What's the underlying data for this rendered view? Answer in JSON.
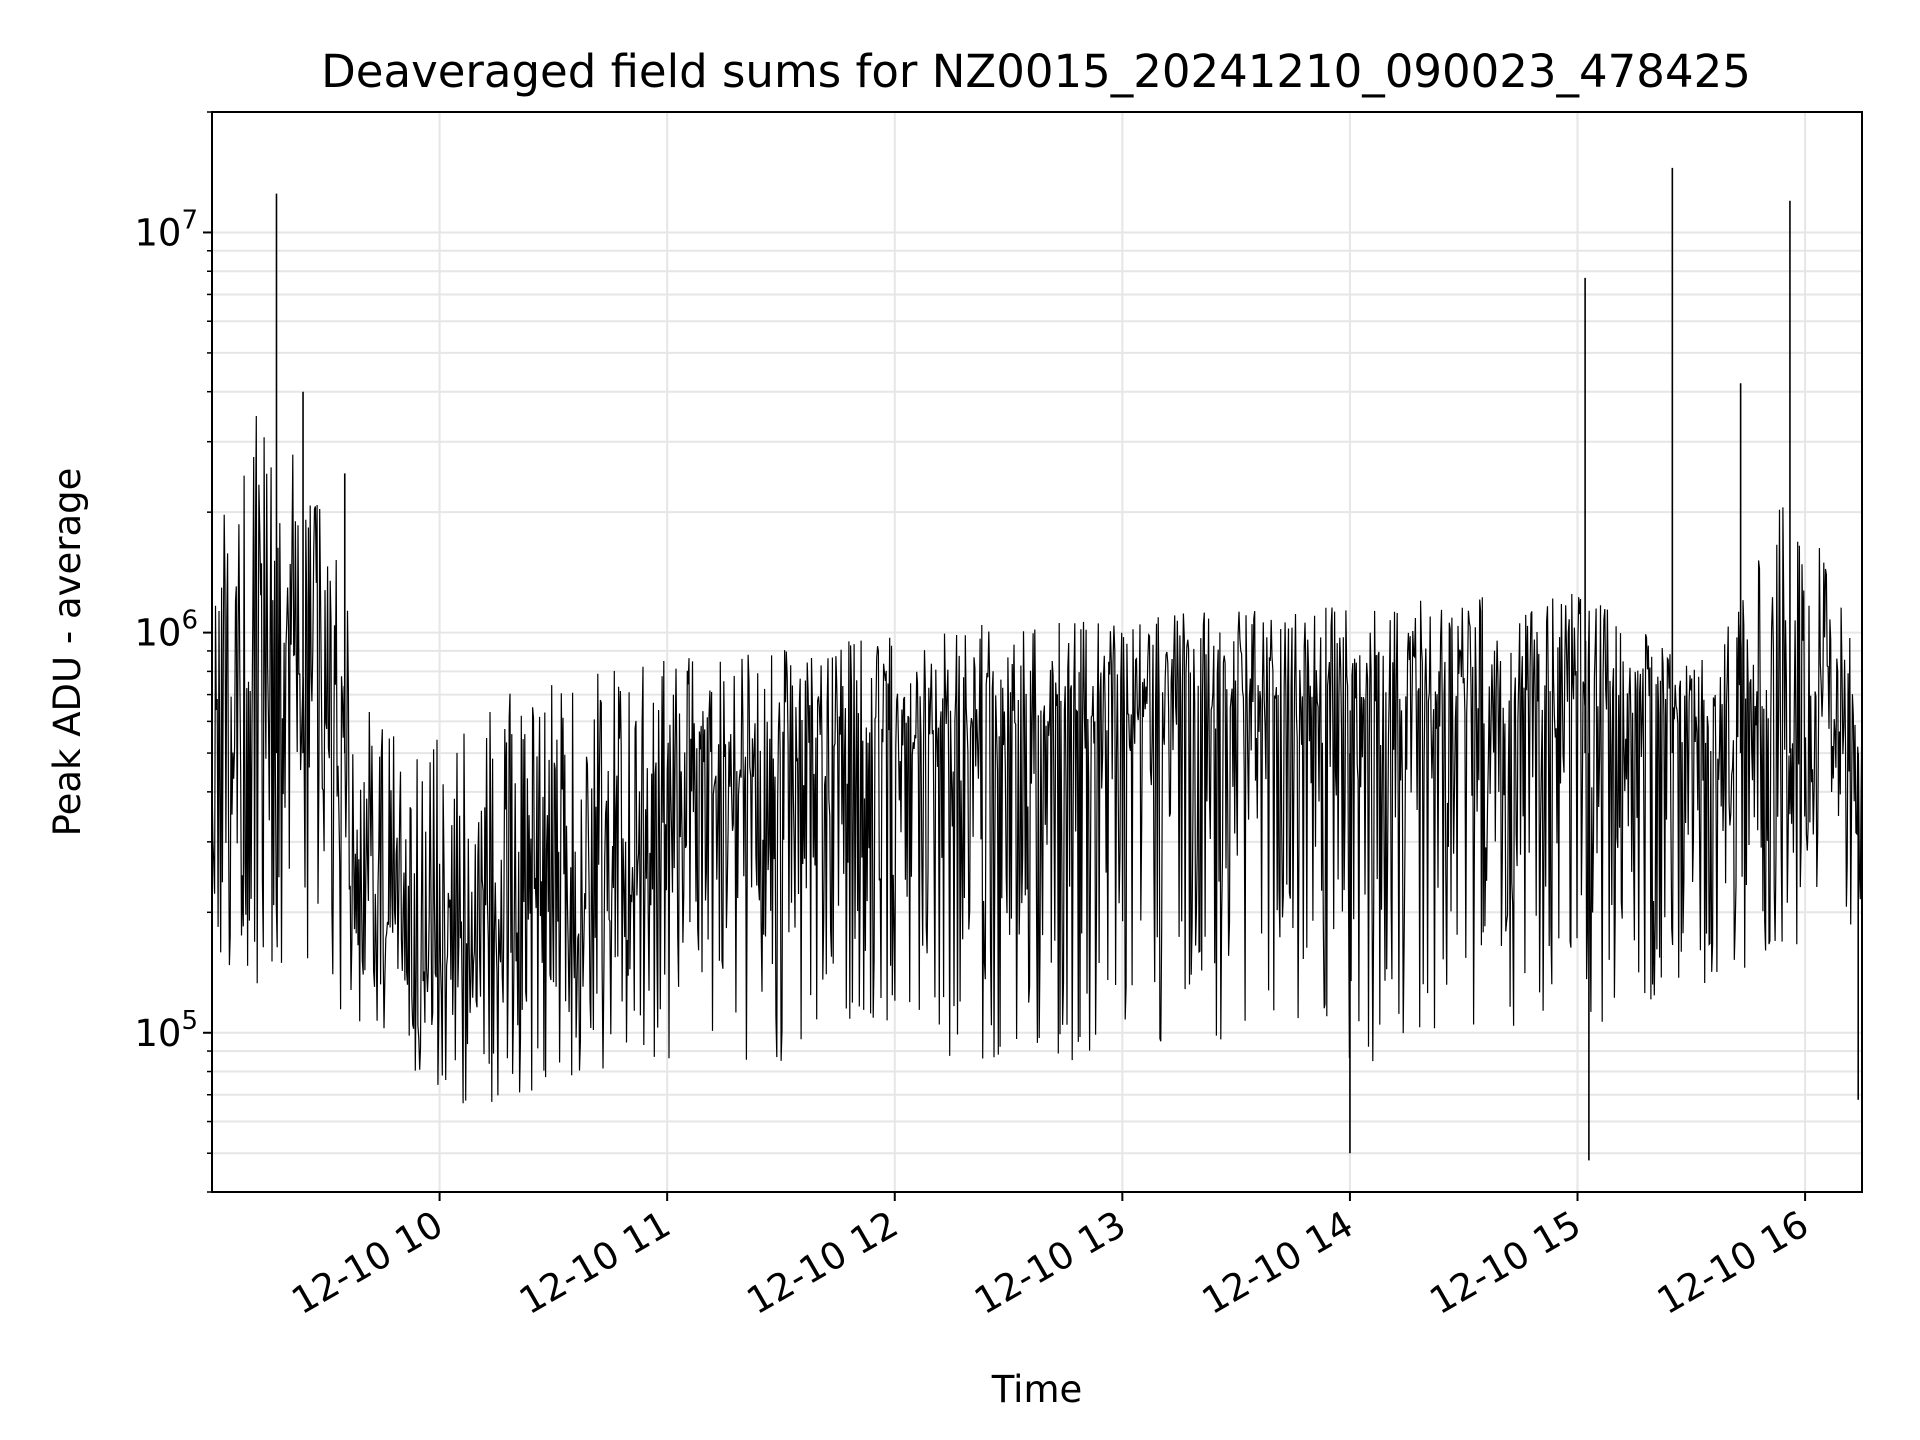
{
  "chart_data": {
    "type": "line",
    "title": "Deaveraged field sums for NZ0015_20241210_090023_478425",
    "xlabel": "Time",
    "ylabel": "Peak ADU - average",
    "y_scale": "log",
    "ylim": [
      40000,
      20000000
    ],
    "xlim": [
      "2024-12-10 09:00",
      "2024-12-10 16:15"
    ],
    "grid": true,
    "line_color": "#000000",
    "grid_color": "#e6e6e6",
    "x_ticks": [
      {
        "value": "2024-12-10 10:00",
        "label": "12-10 10"
      },
      {
        "value": "2024-12-10 11:00",
        "label": "12-10 11"
      },
      {
        "value": "2024-12-10 12:00",
        "label": "12-10 12"
      },
      {
        "value": "2024-12-10 13:00",
        "label": "12-10 13"
      },
      {
        "value": "2024-12-10 14:00",
        "label": "12-10 14"
      },
      {
        "value": "2024-12-10 15:00",
        "label": "12-10 15"
      },
      {
        "value": "2024-12-10 16:00",
        "label": "12-10 16"
      }
    ],
    "y_ticks": [
      {
        "value": 100000,
        "base": "10",
        "exp": "5"
      },
      {
        "value": 1000000,
        "base": "10",
        "exp": "6"
      },
      {
        "value": 10000000,
        "base": "10",
        "exp": "7"
      }
    ],
    "series": [
      {
        "x": [
          "2024-12-10 09:00",
          "2024-12-10 09:06",
          "2024-12-10 09:12",
          "2024-12-10 09:18",
          "2024-12-10 09:24",
          "2024-12-10 09:30",
          "2024-12-10 09:36",
          "2024-12-10 09:42",
          "2024-12-10 09:48",
          "2024-12-10 09:54",
          "2024-12-10 10:00",
          "2024-12-10 10:06",
          "2024-12-10 10:12",
          "2024-12-10 10:18",
          "2024-12-10 10:24",
          "2024-12-10 10:30",
          "2024-12-10 10:36",
          "2024-12-10 10:42",
          "2024-12-10 10:48",
          "2024-12-10 10:54",
          "2024-12-10 11:00",
          "2024-12-10 11:06",
          "2024-12-10 11:12",
          "2024-12-10 11:18",
          "2024-12-10 11:24",
          "2024-12-10 11:30",
          "2024-12-10 11:36",
          "2024-12-10 11:42",
          "2024-12-10 11:48",
          "2024-12-10 11:54",
          "2024-12-10 12:00",
          "2024-12-10 12:06",
          "2024-12-10 12:12",
          "2024-12-10 12:18",
          "2024-12-10 12:24",
          "2024-12-10 12:30",
          "2024-12-10 12:36",
          "2024-12-10 12:42",
          "2024-12-10 12:48",
          "2024-12-10 12:54",
          "2024-12-10 13:00",
          "2024-12-10 13:06",
          "2024-12-10 13:12",
          "2024-12-10 13:18",
          "2024-12-10 13:24",
          "2024-12-10 13:30",
          "2024-12-10 13:36",
          "2024-12-10 13:42",
          "2024-12-10 13:48",
          "2024-12-10 13:54",
          "2024-12-10 14:00",
          "2024-12-10 14:06",
          "2024-12-10 14:12",
          "2024-12-10 14:18",
          "2024-12-10 14:24",
          "2024-12-10 14:30",
          "2024-12-10 14:36",
          "2024-12-10 14:42",
          "2024-12-10 14:48",
          "2024-12-10 14:54",
          "2024-12-10 15:00",
          "2024-12-10 15:06",
          "2024-12-10 15:12",
          "2024-12-10 15:18",
          "2024-12-10 15:24",
          "2024-12-10 15:30",
          "2024-12-10 15:36",
          "2024-12-10 15:42",
          "2024-12-10 15:48",
          "2024-12-10 15:54",
          "2024-12-10 16:00",
          "2024-12-10 16:06",
          "2024-12-10 16:12"
        ],
        "y_median": [
          450000,
          520000,
          700000,
          950000,
          850000,
          600000,
          300000,
          250000,
          200000,
          170000,
          150000,
          160000,
          170000,
          180000,
          190000,
          200000,
          220000,
          250000,
          280000,
          300000,
          320000,
          350000,
          380000,
          400000,
          420000,
          440000,
          460000,
          480000,
          500000,
          520000,
          520000,
          550000,
          560000,
          570000,
          580000,
          590000,
          600000,
          600000,
          600000,
          610000,
          620000,
          620000,
          630000,
          640000,
          640000,
          650000,
          650000,
          660000,
          660000,
          670000,
          670000,
          680000,
          690000,
          690000,
          700000,
          700000,
          710000,
          710000,
          720000,
          720000,
          720000,
          700000,
          680000,
          650000,
          600000,
          560000,
          530000,
          550000,
          600000,
          650000,
          650000,
          600000,
          550000
        ],
        "y_low": [
          150000,
          130000,
          120000,
          150000,
          140000,
          110000,
          110000,
          100000,
          90000,
          75000,
          65000,
          62000,
          65000,
          70000,
          70000,
          72000,
          75000,
          78000,
          80000,
          82000,
          85000,
          85000,
          80000,
          80000,
          82000,
          85000,
          88000,
          90000,
          92000,
          95000,
          95000,
          90000,
          85000,
          80000,
          80000,
          78000,
          75000,
          75000,
          78000,
          80000,
          85000,
          88000,
          90000,
          92000,
          95000,
          95000,
          98000,
          100000,
          100000,
          100000,
          60000,
          80000,
          90000,
          100000,
          100000,
          100000,
          100000,
          100000,
          100000,
          100000,
          100000,
          100000,
          110000,
          120000,
          120000,
          125000,
          130000,
          140000,
          150000,
          160000,
          170000,
          160000,
          150000
        ],
        "y_high": [
          1800000,
          2500000,
          4200000,
          3500000,
          2500000,
          2000000,
          1300000,
          700000,
          550000,
          500000,
          550000,
          600000,
          650000,
          700000,
          750000,
          800000,
          820000,
          850000,
          870000,
          880000,
          880000,
          880000,
          890000,
          900000,
          900000,
          920000,
          940000,
          950000,
          960000,
          980000,
          1000000,
          1020000,
          1030000,
          1040000,
          1050000,
          1060000,
          1070000,
          1080000,
          1090000,
          1100000,
          1100000,
          1100000,
          1110000,
          1120000,
          1130000,
          1140000,
          1150000,
          1160000,
          1170000,
          1180000,
          1180000,
          1200000,
          1210000,
          1220000,
          1230000,
          1240000,
          1250000,
          1250000,
          1260000,
          1260000,
          1260000,
          1200000,
          1100000,
          1000000,
          900000,
          850000,
          900000,
          1200000,
          1600000,
          2200000,
          2000000,
          1500000,
          1000000
        ]
      }
    ],
    "spikes": [
      {
        "x": "2024-12-10 09:17",
        "y": 12500000
      },
      {
        "x": "2024-12-10 15:02",
        "y": 7700000
      },
      {
        "x": "2024-12-10 15:25",
        "y": 14500000
      },
      {
        "x": "2024-12-10 15:56",
        "y": 12000000
      },
      {
        "x": "2024-12-10 15:43",
        "y": 4200000
      },
      {
        "x": "2024-12-10 09:24",
        "y": 4000000
      },
      {
        "x": "2024-12-10 09:35",
        "y": 2500000
      },
      {
        "x": "2024-12-10 14:00",
        "y": 50000
      },
      {
        "x": "2024-12-10 15:03",
        "y": 48000
      },
      {
        "x": "2024-12-10 16:14",
        "y": 68000
      }
    ]
  }
}
